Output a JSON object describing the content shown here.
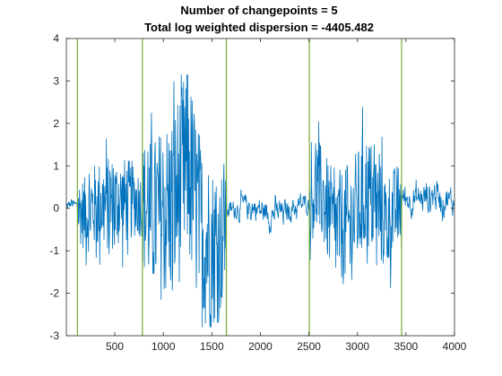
{
  "chart_data": {
    "type": "line",
    "title_lines": [
      "Number of changepoints = 5",
      "Total log weighted dispersion = -4405.482"
    ],
    "xlabel": "",
    "ylabel": "",
    "xlim": [
      1,
      4000
    ],
    "ylim": [
      -3,
      4
    ],
    "xticks": [
      500,
      1000,
      1500,
      2000,
      2500,
      3000,
      3500,
      4000
    ],
    "yticks": [
      -3,
      -2,
      -1,
      0,
      1,
      2,
      3,
      4
    ],
    "grid": false,
    "legend": "none",
    "colors": {
      "signal": "#0072BD",
      "changepoint": "#77AC30",
      "axes": "#262626"
    },
    "changepoints": [
      115,
      785,
      1650,
      2505,
      3455
    ],
    "series": [
      {
        "segments": [
          {
            "x_start": 1,
            "x_end": 115,
            "mean": 0.05,
            "amp": 0.15
          },
          {
            "x_start": 115,
            "x_end": 785,
            "mean": 0.0,
            "amp": 0.75
          },
          {
            "x_start": 785,
            "x_end": 1650,
            "mean": 0.0,
            "amp": 1.55
          },
          {
            "x_start": 1650,
            "x_end": 2505,
            "mean": 0.0,
            "amp": 0.35
          },
          {
            "x_start": 2505,
            "x_end": 3455,
            "mean": 0.0,
            "amp": 0.95
          },
          {
            "x_start": 3455,
            "x_end": 4000,
            "mean": 0.1,
            "amp": 0.45
          }
        ],
        "keypoints": [
          [
            1,
            0.0
          ],
          [
            60,
            0.15
          ],
          [
            115,
            0.0
          ],
          [
            200,
            -0.45
          ],
          [
            300,
            0.15
          ],
          [
            450,
            0.3
          ],
          [
            600,
            0.45
          ],
          [
            700,
            0.6
          ],
          [
            785,
            0.2
          ],
          [
            900,
            -0.6
          ],
          [
            1000,
            -0.3
          ],
          [
            1100,
            0.3
          ],
          [
            1250,
            3.1
          ],
          [
            1400,
            -1.9
          ],
          [
            1580,
            -2.8
          ],
          [
            1650,
            -0.3
          ],
          [
            1800,
            0.15
          ],
          [
            1950,
            0.05
          ],
          [
            2100,
            -0.4
          ],
          [
            2250,
            -0.25
          ],
          [
            2350,
            0.1
          ],
          [
            2505,
            0.3
          ],
          [
            2600,
            1.5
          ],
          [
            2750,
            -1.2
          ],
          [
            2900,
            -1.3
          ],
          [
            3100,
            1.2
          ],
          [
            3300,
            -1.0
          ],
          [
            3455,
            0.5
          ],
          [
            3600,
            0.2
          ],
          [
            3800,
            0.7
          ],
          [
            4000,
            0.0
          ]
        ]
      }
    ]
  }
}
